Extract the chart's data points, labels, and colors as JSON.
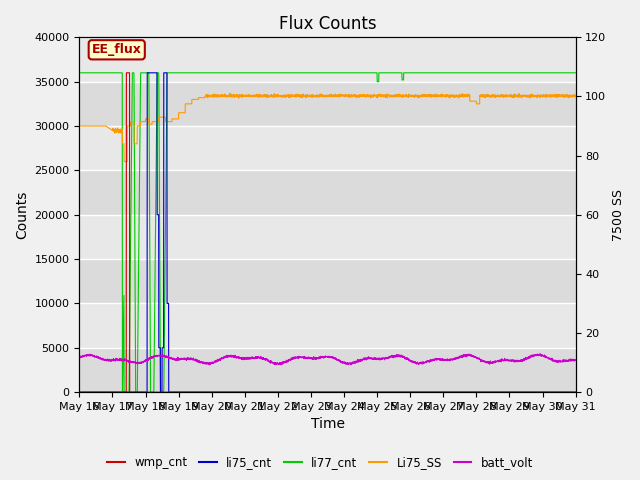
{
  "title": "Flux Counts",
  "xlabel": "Time",
  "ylabel_left": "Counts",
  "ylabel_right": "7500 SS",
  "annotation_text": "EE_flux",
  "annotation_bg": "#ffffcc",
  "annotation_border": "#aa0000",
  "bg_outer": "#d8d8d8",
  "bg_inner": "#e8e8e8",
  "ylim_left": [
    0,
    40000
  ],
  "ylim_right": [
    0,
    120
  ],
  "yticks_left": [
    0,
    5000,
    10000,
    15000,
    20000,
    25000,
    30000,
    35000,
    40000
  ],
  "yticks_right": [
    0,
    20,
    40,
    60,
    80,
    100,
    120
  ],
  "legend_entries": [
    "wmp_cnt",
    "li75_cnt",
    "li77_cnt",
    "Li75_SS",
    "batt_volt"
  ],
  "legend_colors": [
    "#cc0000",
    "#0000cc",
    "#00cc00",
    "#ff9900",
    "#cc00cc"
  ],
  "n_days": 15,
  "x_labels": [
    "May 16",
    "May 17",
    "May 18",
    "May 19",
    "May 20",
    "May 21",
    "May 22",
    "May 23",
    "May 24",
    "May 25",
    "May 26",
    "May 27",
    "May 28",
    "May 29",
    "May 30",
    "May 31"
  ]
}
